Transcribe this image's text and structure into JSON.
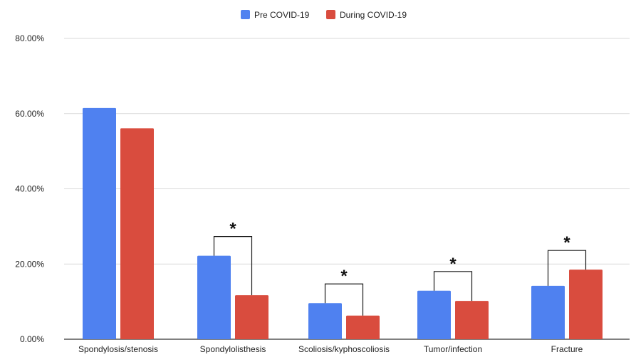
{
  "chart_data": {
    "type": "bar",
    "title": "",
    "xlabel": "",
    "ylabel": "",
    "categories": [
      "Spondylosis/stenosis",
      "Spondylolisthesis",
      "Scoliosis/kyphoscoliosis",
      "Tumor/infection",
      "Fracture"
    ],
    "series": [
      {
        "name": "Pre COVID-19",
        "color": "#4f81f0",
        "values": [
          61.5,
          22.2,
          9.6,
          12.9,
          14.2
        ]
      },
      {
        "name": "During COVID-19",
        "color": "#d94c3e",
        "values": [
          56.1,
          11.7,
          6.3,
          10.2,
          18.5
        ]
      }
    ],
    "ylim": [
      0,
      80
    ],
    "yticks": [
      "0.00%",
      "20.00%",
      "40.00%",
      "60.00%",
      "80.00%"
    ],
    "grid": true,
    "legend": "top-center",
    "significance_marker": "*",
    "significant_categories": [
      "Spondylolisthesis",
      "Scoliosis/kyphoscoliosis",
      "Tumor/infection",
      "Fracture"
    ]
  }
}
